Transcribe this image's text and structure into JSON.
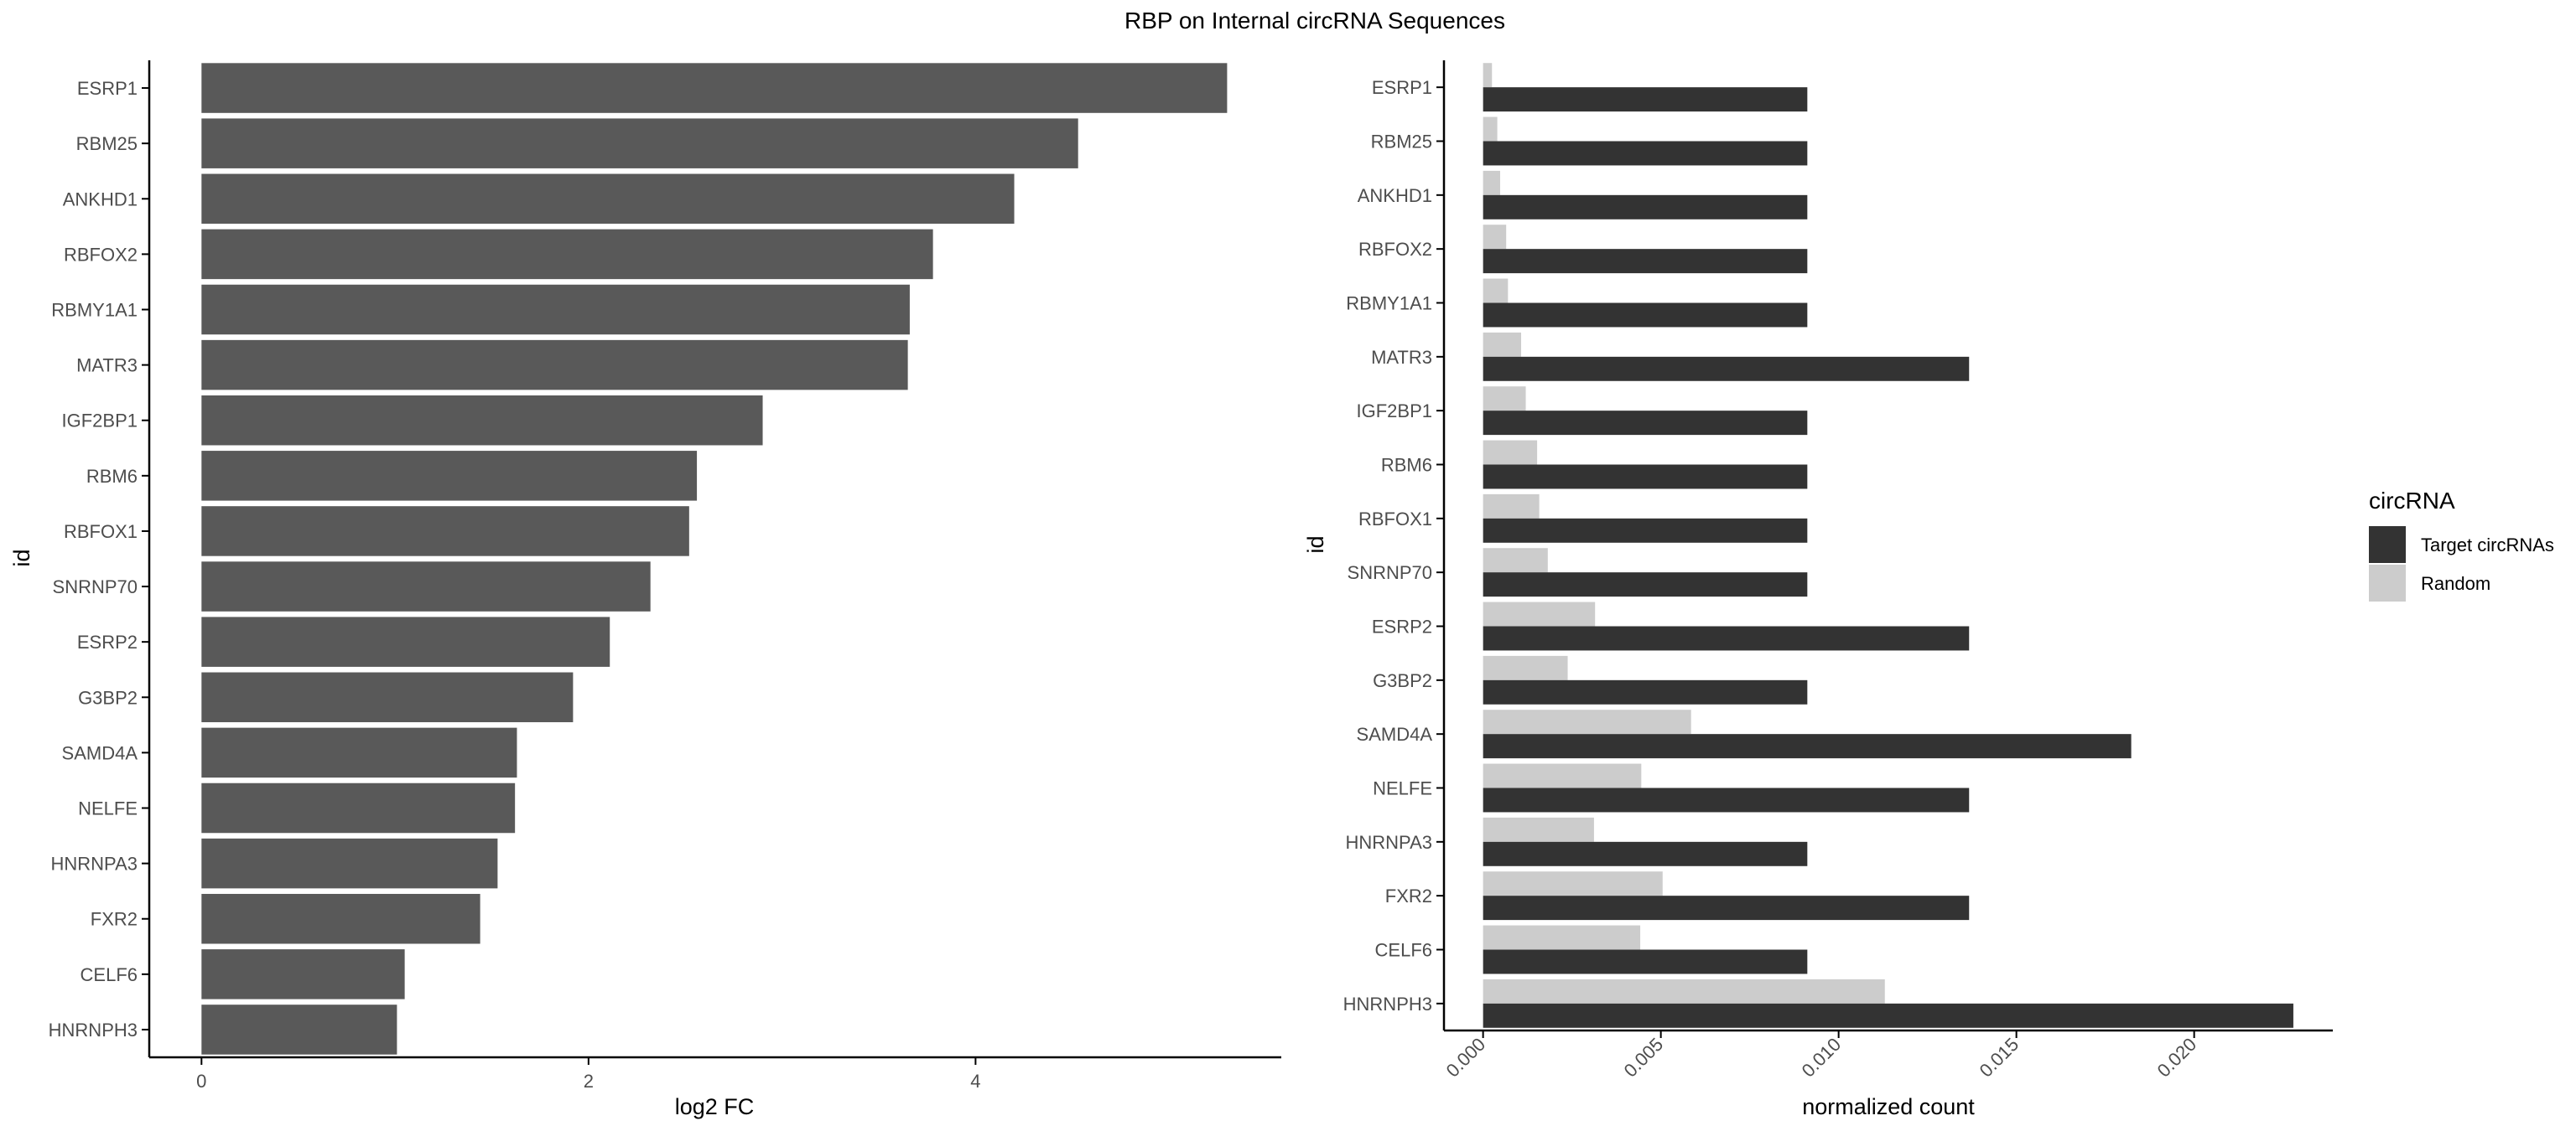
{
  "title": "RBP on Internal circRNA Sequences",
  "colors": {
    "bar_left": "#595959",
    "target": "#333333",
    "random": "#cccccc",
    "axis": "#000000",
    "tick_text": "#4d4d4d"
  },
  "chart_data": [
    {
      "type": "bar",
      "orientation": "horizontal",
      "categories": [
        "ESRP1",
        "RBM25",
        "ANKHD1",
        "RBFOX2",
        "RBMY1A1",
        "MATR3",
        "IGF2BP1",
        "RBM6",
        "RBFOX1",
        "SNRNP70",
        "ESRP2",
        "G3BP2",
        "SAMD4A",
        "NELFE",
        "HNRNPA3",
        "FXR2",
        "CELF6",
        "HNRNPH3"
      ],
      "values": [
        5.3,
        4.53,
        4.2,
        3.78,
        3.66,
        3.65,
        2.9,
        2.56,
        2.52,
        2.32,
        2.11,
        1.92,
        1.63,
        1.62,
        1.53,
        1.44,
        1.05,
        1.01
      ],
      "xlabel": "log2 FC",
      "ylabel": "id",
      "xlim": [
        -0.27,
        5.58
      ],
      "xticks": [
        0,
        2,
        4
      ],
      "xtick_labels": [
        "0",
        "2",
        "4"
      ],
      "grid": false
    },
    {
      "type": "bar",
      "orientation": "horizontal",
      "grouped": true,
      "categories": [
        "ESRP1",
        "RBM25",
        "ANKHD1",
        "RBFOX2",
        "RBMY1A1",
        "MATR3",
        "IGF2BP1",
        "RBM6",
        "RBFOX1",
        "SNRNP70",
        "ESRP2",
        "G3BP2",
        "SAMD4A",
        "NELFE",
        "HNRNPA3",
        "FXR2",
        "CELF6",
        "HNRNPH3"
      ],
      "series": [
        {
          "name": "Target circRNAs",
          "values": [
            0.00912,
            0.00912,
            0.00912,
            0.00912,
            0.00912,
            0.01367,
            0.00912,
            0.00912,
            0.00912,
            0.00912,
            0.01367,
            0.00912,
            0.01823,
            0.01367,
            0.00912,
            0.01367,
            0.00912,
            0.02279
          ]
        },
        {
          "name": "Random",
          "values": [
            0.00025,
            0.0004,
            0.00048,
            0.00065,
            0.0007,
            0.00107,
            0.0012,
            0.00152,
            0.00158,
            0.00182,
            0.00315,
            0.00238,
            0.00585,
            0.00445,
            0.00312,
            0.00505,
            0.00442,
            0.0113
          ]
        }
      ],
      "xlabel": "normalized count",
      "ylabel": "id",
      "xlim": [
        -0.0011,
        0.0239
      ],
      "xticks": [
        0,
        0.005,
        0.01,
        0.015,
        0.02
      ],
      "xtick_labels": [
        "0.000",
        "0.005",
        "0.010",
        "0.015",
        "0.020"
      ],
      "legend": {
        "title": "circRNA",
        "placement": "right"
      },
      "grid": false
    }
  ]
}
